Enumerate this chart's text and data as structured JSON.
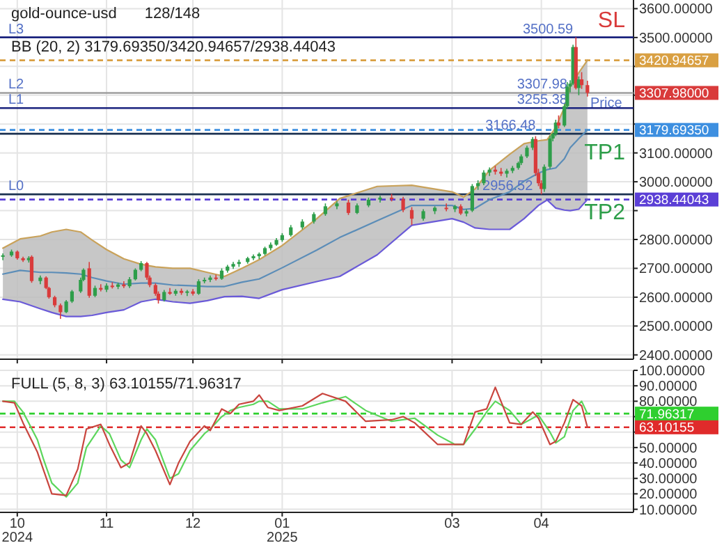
{
  "chart_data": [
    {
      "type": "candlestick",
      "title": "gold-ounce-usd",
      "subtitle": "128/148",
      "annotations": [
        "BB (20, 2)  3179.69350/3420.94657/2938.44043",
        {
          "text": "3500.59",
          "x": "2025-04-13",
          "y": 3500.59
        },
        {
          "text": "3307.98",
          "x": "2025-04-11",
          "y": 3307.98
        },
        {
          "text": "3255.38",
          "x": "2025-04-11",
          "y": 3255.38
        },
        {
          "text": "3166.48",
          "x": "2025-03-31",
          "y": 3166.48
        },
        {
          "text": "2956.52",
          "x": "2025-03-30",
          "y": 2956.52
        },
        {
          "text": "Price",
          "x": "2025-04-30",
          "y": 3244
        },
        "3307.98000",
        "SL",
        "TP1",
        "TP2"
      ],
      "x": [
        "2024-09-26",
        "2024-09-29",
        "2024-10-01",
        "2024-10-03",
        "2024-10-05",
        "2024-10-06",
        "2024-10-09",
        "2024-10-11",
        "2024-10-12",
        "2024-10-14",
        "2024-10-16",
        "2024-10-18",
        "2024-10-20",
        "2024-10-23",
        "2024-10-24",
        "2024-10-26",
        "2024-10-28",
        "2024-10-30",
        "2024-11-01",
        "2024-11-03",
        "2024-11-05",
        "2024-11-07",
        "2024-11-09",
        "2024-11-11",
        "2024-11-13",
        "2024-11-15",
        "2024-11-16",
        "2024-11-18",
        "2024-11-19",
        "2024-11-21",
        "2024-11-23",
        "2024-11-25",
        "2024-11-27",
        "2024-11-29",
        "2024-12-01",
        "2024-12-03",
        "2024-12-05",
        "2024-12-07",
        "2024-12-09",
        "2024-12-11",
        "2024-12-13",
        "2024-12-15",
        "2024-12-17",
        "2024-12-20",
        "2024-12-22",
        "2024-12-24",
        "2024-12-26",
        "2024-12-28",
        "2024-12-30",
        "2025-01-01",
        "2025-01-04",
        "2025-01-08",
        "2025-01-12",
        "2025-01-16",
        "2025-01-20",
        "2025-01-24",
        "2025-01-27",
        "2025-01-31",
        "2025-02-04",
        "2025-02-08",
        "2025-02-12",
        "2025-02-15",
        "2025-02-19",
        "2025-02-23",
        "2025-02-27",
        "2025-03-02",
        "2025-03-04",
        "2025-03-06",
        "2025-03-08",
        "2025-03-10",
        "2025-03-12",
        "2025-03-14",
        "2025-03-16",
        "2025-03-18",
        "2025-03-20",
        "2025-03-22",
        "2025-03-24",
        "2025-03-25",
        "2025-03-27",
        "2025-03-29",
        "2025-03-30",
        "2025-03-31",
        "2025-04-01",
        "2025-04-02",
        "2025-04-04",
        "2025-04-05",
        "2025-04-06",
        "2025-04-07",
        "2025-04-09",
        "2025-04-10",
        "2025-04-11",
        "2025-04-12",
        "2025-04-13",
        "2025-04-14",
        "2025-04-15",
        "2025-04-17"
      ],
      "ohlc": [
        [
          2740,
          2752,
          2728,
          2745
        ],
        [
          2745,
          2765,
          2740,
          2758
        ],
        [
          2758,
          2762,
          2730,
          2735
        ],
        [
          2735,
          2740,
          2722,
          2728
        ],
        [
          2728,
          2742,
          2720,
          2736
        ],
        [
          2740,
          2745,
          2650,
          2656
        ],
        [
          2656,
          2675,
          2645,
          2668
        ],
        [
          2668,
          2672,
          2628,
          2632
        ],
        [
          2632,
          2636,
          2595,
          2600
        ],
        [
          2600,
          2605,
          2565,
          2572
        ],
        [
          2572,
          2578,
          2525,
          2548
        ],
        [
          2548,
          2590,
          2545,
          2585
        ],
        [
          2585,
          2625,
          2580,
          2620
        ],
        [
          2620,
          2668,
          2615,
          2660
        ],
        [
          2660,
          2700,
          2655,
          2695
        ],
        [
          2700,
          2722,
          2598,
          2605
        ],
        [
          2605,
          2640,
          2600,
          2632
        ],
        [
          2632,
          2645,
          2620,
          2626
        ],
        [
          2626,
          2648,
          2618,
          2640
        ],
        [
          2640,
          2652,
          2630,
          2636
        ],
        [
          2636,
          2650,
          2628,
          2644
        ],
        [
          2644,
          2655,
          2632,
          2638
        ],
        [
          2638,
          2670,
          2632,
          2662
        ],
        [
          2662,
          2700,
          2658,
          2695
        ],
        [
          2695,
          2725,
          2690,
          2718
        ],
        [
          2718,
          2722,
          2660,
          2668
        ],
        [
          2668,
          2675,
          2635,
          2642
        ],
        [
          2642,
          2648,
          2605,
          2612
        ],
        [
          2612,
          2620,
          2578,
          2590
        ],
        [
          2590,
          2625,
          2585,
          2618
        ],
        [
          2618,
          2632,
          2608,
          2612
        ],
        [
          2612,
          2628,
          2605,
          2622
        ],
        [
          2622,
          2630,
          2608,
          2615
        ],
        [
          2615,
          2625,
          2604,
          2620
        ],
        [
          2620,
          2628,
          2606,
          2612
        ],
        [
          2612,
          2662,
          2608,
          2655
        ],
        [
          2655,
          2668,
          2648,
          2660
        ],
        [
          2660,
          2675,
          2652,
          2668
        ],
        [
          2668,
          2678,
          2658,
          2664
        ],
        [
          2664,
          2700,
          2660,
          2692
        ],
        [
          2692,
          2712,
          2685,
          2706
        ],
        [
          2706,
          2722,
          2698,
          2715
        ],
        [
          2715,
          2730,
          2705,
          2722
        ],
        [
          2722,
          2740,
          2716,
          2735
        ],
        [
          2735,
          2748,
          2728,
          2742
        ],
        [
          2742,
          2755,
          2732,
          2750
        ],
        [
          2750,
          2775,
          2745,
          2770
        ],
        [
          2770,
          2790,
          2762,
          2782
        ],
        [
          2782,
          2805,
          2778,
          2798
        ],
        [
          2798,
          2822,
          2792,
          2815
        ],
        [
          2815,
          2850,
          2810,
          2842
        ],
        [
          2842,
          2870,
          2835,
          2862
        ],
        [
          2862,
          2895,
          2855,
          2888
        ],
        [
          2888,
          2925,
          2882,
          2915
        ],
        [
          2915,
          2932,
          2905,
          2925
        ],
        [
          2928,
          2938,
          2885,
          2892
        ],
        [
          2892,
          2925,
          2888,
          2918
        ],
        [
          2918,
          2945,
          2912,
          2938
        ],
        [
          2938,
          2952,
          2928,
          2945
        ],
        [
          2945,
          2958,
          2932,
          2940
        ],
        [
          2940,
          2948,
          2895,
          2902
        ],
        [
          2902,
          2912,
          2850,
          2872
        ],
        [
          2872,
          2905,
          2865,
          2898
        ],
        [
          2898,
          2915,
          2888,
          2910
        ],
        [
          2910,
          2925,
          2898,
          2905
        ],
        [
          2905,
          2920,
          2895,
          2915
        ],
        [
          2915,
          2922,
          2885,
          2890
        ],
        [
          2890,
          2905,
          2880,
          2898
        ],
        [
          2900,
          2992,
          2895,
          2985
        ],
        [
          2985,
          3005,
          2972,
          2995
        ],
        [
          2995,
          3040,
          2988,
          3032
        ],
        [
          3032,
          3050,
          3020,
          3042
        ],
        [
          3042,
          3055,
          3025,
          3035
        ],
        [
          3035,
          3048,
          3020,
          3028
        ],
        [
          3028,
          3045,
          3015,
          3038
        ],
        [
          3038,
          3055,
          3030,
          3048
        ],
        [
          3048,
          3070,
          3042,
          3065
        ],
        [
          3065,
          3095,
          3058,
          3088
        ],
        [
          3088,
          3125,
          3082,
          3118
        ],
        [
          3118,
          3155,
          3110,
          3148
        ],
        [
          3148,
          3158,
          3020,
          3030
        ],
        [
          3030,
          3045,
          2985,
          2995
        ],
        [
          2995,
          3005,
          2956.52,
          2975
        ],
        [
          2975,
          3060,
          2965,
          3052
        ],
        [
          3052,
          3160,
          3045,
          3150
        ],
        [
          3150,
          3170,
          3140,
          3166
        ],
        [
          3166,
          3215,
          3158,
          3205
        ],
        [
          3205,
          3230,
          3185,
          3195
        ],
        [
          3195,
          3270,
          3190,
          3262
        ],
        [
          3262,
          3345,
          3255,
          3330
        ],
        [
          3330,
          3352,
          3310,
          3340
        ],
        [
          3340,
          3475,
          3335,
          3467
        ],
        [
          3467,
          3500.59,
          3320,
          3325
        ],
        [
          3325,
          3365,
          3300,
          3355
        ],
        [
          3355,
          3380,
          3322,
          3335
        ],
        [
          3335,
          3350,
          3295,
          3307.98
        ]
      ],
      "series": [
        {
          "type": "line",
          "color": "#c9a25a",
          "x": [
            "2024-09-26",
            "2024-10-02",
            "2024-10-09",
            "2024-10-13",
            "2024-10-18",
            "2024-10-23",
            "2024-10-27",
            "2024-11-01",
            "2024-11-07",
            "2024-11-13",
            "2024-11-18",
            "2024-11-24",
            "2024-11-30",
            "2024-12-06",
            "2024-12-12",
            "2024-12-18",
            "2024-12-24",
            "2025-01-01",
            "2025-01-13",
            "2025-01-21",
            "2025-02-03",
            "2025-02-15",
            "2025-03-01",
            "2025-03-05",
            "2025-03-09",
            "2025-03-14",
            "2025-03-21",
            "2025-03-26",
            "2025-03-31",
            "2025-04-03",
            "2025-04-06",
            "2025-04-09",
            "2025-04-11",
            "2025-04-14",
            "2025-04-17"
          ],
          "values": [
            2770,
            2802,
            2812,
            2826,
            2835,
            2826,
            2798,
            2765,
            2733,
            2714,
            2705,
            2700,
            2700,
            2686,
            2672,
            2700,
            2730,
            2779,
            2872,
            2942,
            2984,
            2988,
            2965,
            2947,
            2975,
            3040,
            3095,
            3132,
            3142,
            3146,
            3188,
            3258,
            3332,
            3378,
            3420.94657
          ]
        },
        {
          "type": "line",
          "color": "#5b8db8",
          "x": [
            "2024-09-26",
            "2024-10-02",
            "2024-10-09",
            "2024-10-13",
            "2024-10-18",
            "2024-10-23",
            "2024-10-27",
            "2024-11-01",
            "2024-11-07",
            "2024-11-13",
            "2024-11-18",
            "2024-11-24",
            "2024-11-30",
            "2024-12-06",
            "2024-12-12",
            "2024-12-18",
            "2024-12-24",
            "2025-01-01",
            "2025-01-13",
            "2025-01-21",
            "2025-02-03",
            "2025-02-15",
            "2025-03-01",
            "2025-03-05",
            "2025-03-09",
            "2025-03-14",
            "2025-03-21",
            "2025-03-26",
            "2025-03-31",
            "2025-04-03",
            "2025-04-06",
            "2025-04-09",
            "2025-04-11",
            "2025-04-14",
            "2025-04-17"
          ],
          "values": [
            2680,
            2693,
            2686,
            2686,
            2684,
            2680,
            2668,
            2656,
            2645,
            2649,
            2649,
            2642,
            2640,
            2637,
            2637,
            2652,
            2663,
            2702,
            2763,
            2807,
            2865,
            2918,
            2918,
            2904,
            2908,
            2938,
            2965,
            3002,
            3030,
            3042,
            3048,
            3080,
            3118,
            3150,
            3179.6935
          ],
          "upper": [
            2770,
            2802,
            2812,
            2826,
            2835,
            2826,
            2798,
            2765,
            2733,
            2714,
            2705,
            2700,
            2700,
            2686,
            2672,
            2700,
            2730,
            2779,
            2872,
            2942,
            2984,
            2988,
            2965,
            2947,
            2975,
            3040,
            3095,
            3132,
            3142,
            3146,
            3188,
            3258,
            3332,
            3378,
            3420.94657
          ],
          "lower": [
            2593,
            2584,
            2560,
            2547,
            2533,
            2533,
            2537,
            2547,
            2556,
            2584,
            2593,
            2584,
            2579,
            2588,
            2602,
            2603,
            2596,
            2626,
            2654,
            2672,
            2747,
            2849,
            2872,
            2860,
            2840,
            2835,
            2835,
            2872,
            2918,
            2937,
            2909,
            2902,
            2900,
            2905,
            2938.44043
          ]
        },
        {
          "type": "line",
          "color": "#6a5ad8",
          "x": [
            "2024-09-26",
            "2024-10-02",
            "2024-10-09",
            "2024-10-13",
            "2024-10-18",
            "2024-10-23",
            "2024-10-27",
            "2024-11-01",
            "2024-11-07",
            "2024-11-13",
            "2024-11-18",
            "2024-11-24",
            "2024-11-30",
            "2024-12-06",
            "2024-12-12",
            "2024-12-18",
            "2024-12-24",
            "2025-01-01",
            "2025-01-13",
            "2025-01-21",
            "2025-02-03",
            "2025-02-15",
            "2025-03-01",
            "2025-03-05",
            "2025-03-09",
            "2025-03-14",
            "2025-03-21",
            "2025-03-26",
            "2025-03-31",
            "2025-04-03",
            "2025-04-06",
            "2025-04-09",
            "2025-04-11",
            "2025-04-14",
            "2025-04-17"
          ],
          "values": [
            2593,
            2584,
            2560,
            2547,
            2533,
            2533,
            2537,
            2547,
            2556,
            2584,
            2593,
            2584,
            2579,
            2588,
            2602,
            2603,
            2596,
            2626,
            2654,
            2672,
            2747,
            2849,
            2872,
            2860,
            2840,
            2835,
            2835,
            2872,
            2918,
            2937,
            2909,
            2902,
            2900,
            2905,
            2938.44043
          ]
        }
      ],
      "ref_lines": [
        {
          "axis": "y",
          "value": 3500.59,
          "label": "L3",
          "color": "#1a237e"
        },
        {
          "axis": "y",
          "value": 3420.94657,
          "label": "3420.94657",
          "color": "#d9a043",
          "line_style": "dashed"
        },
        {
          "axis": "y",
          "value": 3307.98,
          "label": "L2",
          "color": "#9e9e9e"
        },
        {
          "axis": "y",
          "value": 3255.38,
          "label": "L1",
          "color": "#1a237e"
        },
        {
          "axis": "y",
          "value": 3179.6935,
          "label": "3179.69350",
          "color": "#3d8fe0",
          "line_style": "dashed"
        },
        {
          "axis": "y",
          "value": 3166.48,
          "label": null,
          "color": "#1a3050"
        },
        {
          "axis": "y",
          "value": 2956.52,
          "label": "L0",
          "color": "#1a3050"
        },
        {
          "axis": "y",
          "value": 2938.44043,
          "label": "2938.44043",
          "color": "#5b3fd6",
          "line_style": "dashed"
        }
      ],
      "xlim": [
        "2024-09-25",
        "2025-05-03"
      ],
      "xticks": [
        {
          "value": "2024-10-01",
          "label": null
        },
        {
          "value": "2024-11-01",
          "label": null
        },
        {
          "value": "2024-12-01",
          "label": null
        },
        {
          "value": "2025-01-01",
          "label": null
        },
        {
          "value": "2025-03-01",
          "label": null
        },
        {
          "value": "2025-04-01",
          "label": null
        }
      ],
      "ylim": [
        2385,
        3630
      ],
      "yticks": [
        {
          "value": 2400,
          "label": "2400.00000"
        },
        {
          "value": 2500,
          "label": "2500.00000"
        },
        {
          "value": 2600,
          "label": "2600.00000"
        },
        {
          "value": 2700,
          "label": "2700.00000"
        },
        {
          "value": 2800,
          "label": "2800.00000"
        },
        {
          "value": 2900,
          "label": null
        },
        {
          "value": 3000,
          "label": "3000.00000"
        },
        {
          "value": 3100,
          "label": "3100.00000"
        },
        {
          "value": 3200,
          "label": null
        },
        {
          "value": 3300,
          "label": null
        },
        {
          "value": 3400,
          "label": null
        },
        {
          "value": 3500,
          "label": "3500.00000"
        },
        {
          "value": 3600,
          "label": "3600.00000"
        }
      ],
      "tick_labels": "y",
      "grid": true
    },
    {
      "type": "line",
      "annotations": [
        "FULL (5, 8, 3)  63.10155/71.96317"
      ],
      "x": [
        "2024-09-26",
        "2024-09-30",
        "2024-10-03",
        "2024-10-08",
        "2024-10-10",
        "2024-10-13",
        "2024-10-18",
        "2024-10-22",
        "2024-10-25",
        "2024-10-30",
        "2024-11-02",
        "2024-11-06",
        "2024-11-09",
        "2024-11-13",
        "2024-11-15",
        "2024-11-18",
        "2024-11-23",
        "2024-11-26",
        "2024-11-30",
        "2024-12-05",
        "2024-12-07",
        "2024-12-11",
        "2024-12-14",
        "2024-12-17",
        "2024-12-22",
        "2024-12-24",
        "2024-12-27",
        "2024-12-31",
        "2025-01-08",
        "2025-01-15",
        "2025-01-23",
        "2025-01-30",
        "2025-02-08",
        "2025-02-12",
        "2025-02-16",
        "2025-02-24",
        "2025-03-02",
        "2025-03-05",
        "2025-03-09",
        "2025-03-13",
        "2025-03-16",
        "2025-03-21",
        "2025-03-25",
        "2025-03-29",
        "2025-03-31",
        "2025-04-04",
        "2025-04-06",
        "2025-04-09",
        "2025-04-12",
        "2025-04-15",
        "2025-04-17"
      ],
      "series": [
        {
          "type": "line",
          "color": "#5cd65c",
          "values": [
            80,
            80,
            73,
            55,
            43,
            27,
            18,
            27,
            50,
            64,
            59,
            42,
            37,
            55,
            62,
            55,
            30,
            33,
            48,
            59,
            62,
            70,
            74,
            76,
            78,
            80,
            80,
            75,
            75,
            79,
            83,
            74,
            67,
            68,
            69,
            58,
            52,
            52,
            62,
            73,
            80,
            74,
            65,
            69,
            71,
            60,
            53,
            57,
            74,
            80,
            71.96317
          ]
        },
        {
          "type": "line",
          "color": "#c9453e",
          "values": [
            80,
            79,
            66,
            47,
            36,
            20,
            19,
            36,
            62,
            65,
            52,
            37,
            40,
            64,
            59,
            48,
            26,
            40,
            54,
            64,
            61,
            75,
            72,
            78,
            80,
            84,
            76,
            74,
            77,
            85,
            80,
            67,
            68,
            70,
            66,
            52,
            52,
            52,
            73,
            75,
            89,
            66,
            65,
            73,
            69,
            52,
            54,
            66,
            81,
            77,
            63.10155
          ]
        }
      ],
      "ref_lines": [
        {
          "axis": "y",
          "value": 71.96317,
          "label": "71.96317",
          "color": "#2fcf2f",
          "line_style": "dashed"
        },
        {
          "axis": "y",
          "value": 63.10155,
          "label": "63.10155",
          "color": "#e02b2b",
          "line_style": "dashed"
        }
      ],
      "xlim": [
        "2024-09-25",
        "2025-05-03"
      ],
      "xticks": [
        {
          "value": "2024-10-01",
          "label": "10\n2024"
        },
        {
          "value": "2024-11-01",
          "label": "11"
        },
        {
          "value": "2024-12-01",
          "label": "12"
        },
        {
          "value": "2025-01-01",
          "label": "01\n2025"
        },
        {
          "value": "2025-03-01",
          "label": "03"
        },
        {
          "value": "2025-04-01",
          "label": "04"
        }
      ],
      "ylim": [
        8,
        100
      ],
      "yticks": [
        {
          "value": 10,
          "label": "10.00000"
        },
        {
          "value": 20,
          "label": "20.00000"
        },
        {
          "value": 30,
          "label": "30.00000"
        },
        {
          "value": 40,
          "label": "40.00000"
        },
        {
          "value": 50,
          "label": "50.00000"
        },
        {
          "value": 60,
          "label": null
        },
        {
          "value": 70,
          "label": null
        },
        {
          "value": 80,
          "label": "80.00000"
        },
        {
          "value": 90,
          "label": "90.00000"
        },
        {
          "value": 100,
          "label": "100.00000"
        }
      ],
      "grid": true
    }
  ]
}
